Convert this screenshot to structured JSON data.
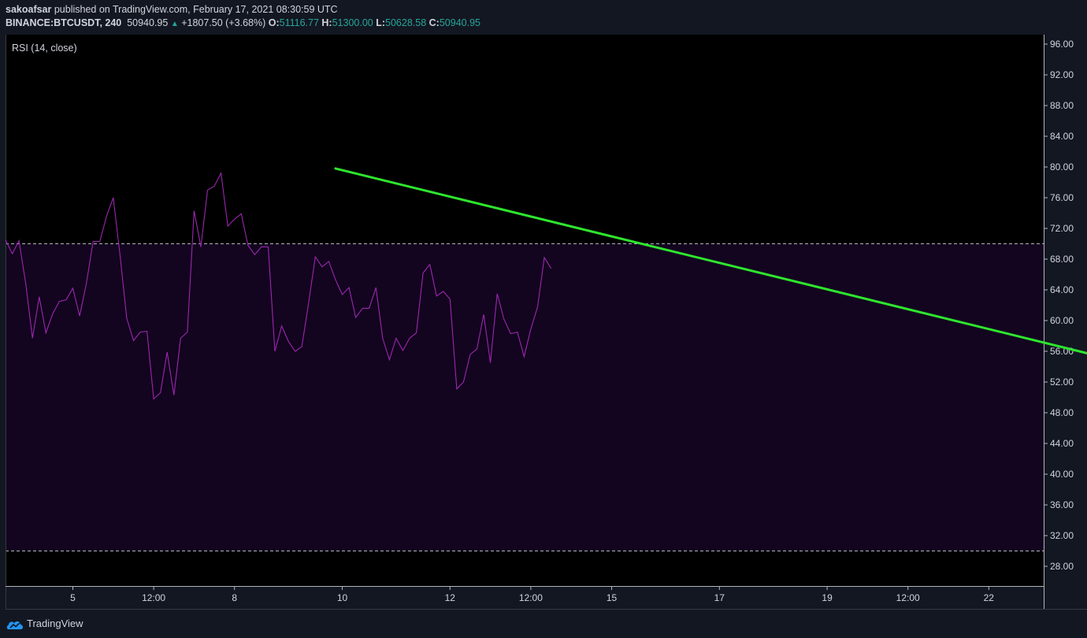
{
  "header": {
    "author": "sakoafsar",
    "published_text": " published on TradingView.com, February 17, 2021 08:30:59 UTC",
    "symbol": "BINANCE:BTCUSDT, 240",
    "last": "50940.95",
    "change": "+1807.50 (+3.68%)",
    "o_label": "O:",
    "o_val": "51116.77",
    "h_label": "H:",
    "h_val": "51300.00",
    "l_label": "L:",
    "l_val": "50628.58",
    "c_label": "C:",
    "c_val": "50940.95"
  },
  "footer": {
    "brand": "TradingView"
  },
  "colors": {
    "rsi": "#9c27b0",
    "trendline": "#2ee62e",
    "band": "#13041f",
    "up": "#26a69a"
  },
  "chart_data": {
    "type": "line",
    "title": "RSI (14, close)",
    "ylim": [
      26,
      98
    ],
    "yticks": [
      "96.00",
      "92.00",
      "88.00",
      "84.00",
      "80.00",
      "76.00",
      "72.00",
      "68.00",
      "64.00",
      "60.00",
      "56.00",
      "52.00",
      "48.00",
      "44.00",
      "40.00",
      "36.00",
      "32.00",
      "28.00"
    ],
    "xticks": [
      "5",
      "12:00",
      "8",
      "10",
      "12",
      "12:00",
      "15",
      "17",
      "19",
      "12:00",
      "22"
    ],
    "x_unit": "4-hour bars",
    "bands": {
      "upper": 70,
      "lower": 30
    },
    "series": [
      {
        "values": [
          70.5,
          68.7,
          70.4,
          64.8,
          57.7,
          63.1,
          58.4,
          60.9,
          62.5,
          62.7,
          64.2,
          60.6,
          64.8,
          70.3,
          70.3,
          73.6,
          76.0,
          68.5,
          60.3,
          57.4,
          58.5,
          58.6,
          49.8,
          50.6,
          55.9,
          50.3,
          57.7,
          58.5,
          74.3,
          69.6,
          77.0,
          77.5,
          79.2,
          72.3,
          73.2,
          73.9,
          69.8,
          68.6,
          69.6,
          69.6,
          56.0,
          59.3,
          57.3,
          56.0,
          56.6,
          62.3,
          68.3,
          67.0,
          67.7,
          65.3,
          63.4,
          64.3,
          60.4,
          61.6,
          61.6,
          64.3,
          57.7,
          54.9,
          57.7,
          56.1,
          57.7,
          58.4,
          66.2,
          67.3,
          63.2,
          63.8,
          62.8,
          51.1,
          52.0,
          55.6,
          56.3,
          60.8,
          54.5,
          63.5,
          60.2,
          58.3,
          58.5,
          55.3,
          58.9,
          61.8,
          68.2,
          66.8
        ]
      }
    ],
    "trendline": {
      "start": [
        49,
        79.8
      ],
      "end": [
        165,
        54.8
      ]
    }
  }
}
